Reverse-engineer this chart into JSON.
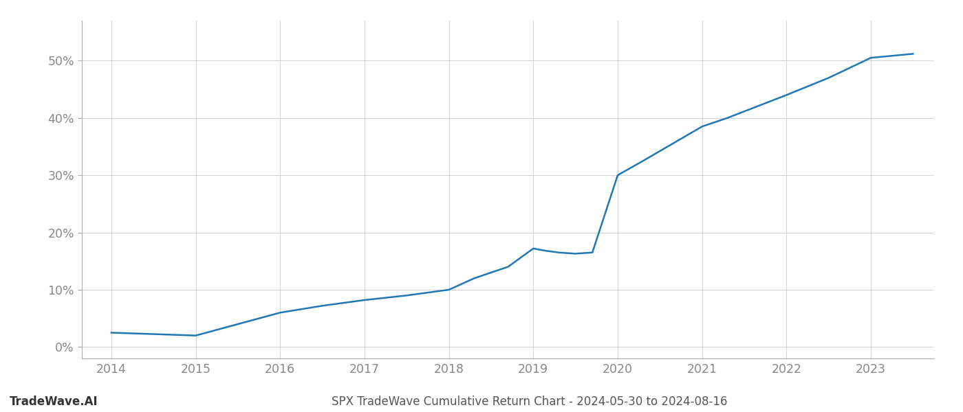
{
  "x_values": [
    2014.0,
    2014.4,
    2015.0,
    2015.5,
    2016.0,
    2016.5,
    2017.0,
    2017.5,
    2018.0,
    2018.3,
    2018.7,
    2019.0,
    2019.15,
    2019.3,
    2019.5,
    2019.7,
    2020.0,
    2020.3,
    2021.0,
    2021.3,
    2022.0,
    2022.5,
    2023.0,
    2023.5
  ],
  "y_values": [
    2.5,
    2.3,
    2.0,
    4.0,
    6.0,
    7.2,
    8.2,
    9.0,
    10.0,
    12.0,
    14.0,
    17.2,
    16.8,
    16.5,
    16.3,
    16.5,
    30.0,
    32.5,
    38.5,
    40.0,
    44.0,
    47.0,
    50.5,
    51.2
  ],
  "line_color": "#1f77b4",
  "line_width": 1.8,
  "background_color": "#ffffff",
  "grid_color": "#cccccc",
  "title": "SPX TradeWave Cumulative Return Chart - 2024-05-30 to 2024-08-16",
  "footer_left": "TradeWave.AI",
  "xlabel": "",
  "ylabel": "",
  "xlim": [
    2013.65,
    2023.75
  ],
  "ylim": [
    -2,
    57
  ],
  "xticks": [
    2014,
    2015,
    2016,
    2017,
    2018,
    2019,
    2020,
    2021,
    2022,
    2023
  ],
  "yticks": [
    0,
    10,
    20,
    30,
    40,
    50
  ],
  "tick_label_color": "#888888",
  "tick_label_fontsize": 12.5,
  "title_fontsize": 12,
  "footer_fontsize": 12
}
